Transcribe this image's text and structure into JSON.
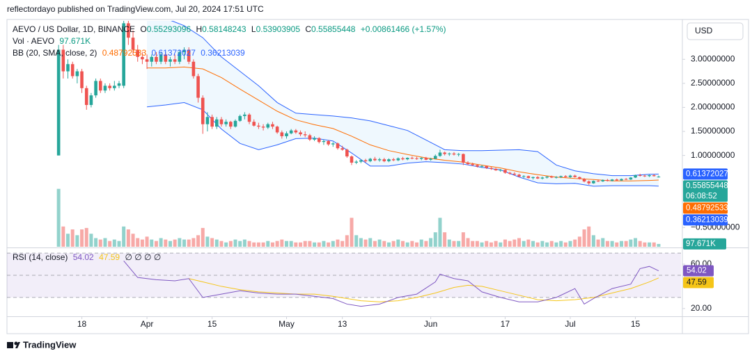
{
  "header": "reflectordayo published on TradingView.com, Jul 20, 2024 17:51 UTC",
  "footer": "TradingView",
  "chart_data": {
    "type": "candlestick",
    "title": "AEVO / US Dollar, 1D, BINANCE",
    "legend": {
      "o": "O",
      "h": "H",
      "l": "L",
      "c": "C",
      "change": "+0.00861466 (+1.57%)"
    },
    "currency": "USD",
    "countdown": "06:08:52",
    "up_color": "#26a69a",
    "down_color": "#ef5350",
    "xlim": [
      -11.1,
      133.8
    ],
    "xticks": [
      {
        "value": 5,
        "label": "18"
      },
      {
        "value": 19,
        "label": "Apr"
      },
      {
        "value": 33,
        "label": "15"
      },
      {
        "value": 49,
        "label": "May"
      },
      {
        "value": 61,
        "label": "13"
      },
      {
        "value": 80,
        "label": "Jun"
      },
      {
        "value": 96,
        "label": "17"
      },
      {
        "value": 110,
        "label": "Jul"
      },
      {
        "value": 124,
        "label": "15"
      }
    ],
    "ylim": [
      -0.9,
      3.8
    ],
    "yticks": [
      {
        "value": 3,
        "label": "3.00000000"
      },
      {
        "value": 2.5,
        "label": "2.50000000"
      },
      {
        "value": 2,
        "label": "2.00000000"
      },
      {
        "value": 1.5,
        "label": "1.50000000"
      },
      {
        "value": 1,
        "label": "1.00000000"
      },
      {
        "value": -0.5,
        "label": "−0.50000000"
      }
    ],
    "ohlc": [
      [
        1.0,
        3.3,
        1.0,
        3.2
      ],
      [
        3.2,
        3.3,
        2.6,
        2.75
      ],
      [
        2.75,
        3.0,
        2.6,
        2.9
      ],
      [
        2.9,
        2.95,
        2.6,
        2.65
      ],
      [
        2.65,
        2.8,
        2.5,
        2.75
      ],
      [
        2.75,
        2.8,
        2.3,
        2.4
      ],
      [
        2.4,
        2.45,
        1.95,
        2.05
      ],
      [
        2.05,
        2.3,
        2.0,
        2.25
      ],
      [
        2.25,
        2.6,
        2.2,
        2.55
      ],
      [
        2.55,
        2.6,
        2.3,
        2.35
      ],
      [
        2.35,
        2.5,
        2.3,
        2.45
      ],
      [
        2.45,
        2.5,
        2.35,
        2.4
      ],
      [
        2.4,
        2.55,
        2.35,
        2.45
      ],
      [
        2.45,
        2.55,
        2.4,
        2.5
      ],
      [
        2.45,
        3.9,
        2.4,
        3.75
      ],
      [
        3.75,
        3.9,
        3.3,
        3.45
      ],
      [
        3.45,
        3.6,
        3.1,
        3.2
      ],
      [
        3.2,
        3.3,
        2.95,
        3.05
      ],
      [
        3.05,
        3.15,
        2.9,
        3.0
      ],
      [
        3.0,
        3.1,
        2.8,
        2.95
      ],
      [
        2.95,
        3.1,
        2.85,
        3.05
      ],
      [
        3.05,
        3.15,
        2.9,
        2.95
      ],
      [
        2.95,
        3.15,
        2.9,
        3.1
      ],
      [
        3.1,
        3.15,
        2.9,
        2.95
      ],
      [
        2.95,
        3.05,
        2.85,
        3.0
      ],
      [
        3.0,
        3.1,
        2.9,
        2.95
      ],
      [
        2.95,
        3.2,
        2.9,
        3.15
      ],
      [
        3.15,
        3.25,
        3.0,
        3.2
      ],
      [
        3.2,
        3.25,
        2.9,
        2.95
      ],
      [
        2.95,
        3.0,
        2.6,
        2.65
      ],
      [
        2.65,
        2.7,
        2.1,
        2.2
      ],
      [
        2.2,
        2.25,
        1.45,
        1.65
      ],
      [
        1.65,
        1.9,
        1.5,
        1.8
      ],
      [
        1.8,
        1.85,
        1.55,
        1.6
      ],
      [
        1.6,
        1.8,
        1.55,
        1.75
      ],
      [
        1.75,
        1.8,
        1.6,
        1.65
      ],
      [
        1.65,
        1.75,
        1.6,
        1.7
      ],
      [
        1.7,
        1.72,
        1.55,
        1.6
      ],
      [
        1.6,
        1.75,
        1.58,
        1.72
      ],
      [
        1.72,
        1.85,
        1.7,
        1.82
      ],
      [
        1.82,
        1.9,
        1.75,
        1.85
      ],
      [
        1.85,
        1.88,
        1.65,
        1.7
      ],
      [
        1.7,
        1.75,
        1.6,
        1.62
      ],
      [
        1.62,
        1.68,
        1.55,
        1.6
      ],
      [
        1.6,
        1.65,
        1.52,
        1.58
      ],
      [
        1.58,
        1.68,
        1.55,
        1.65
      ],
      [
        1.65,
        1.7,
        1.55,
        1.6
      ],
      [
        1.6,
        1.62,
        1.45,
        1.48
      ],
      [
        1.48,
        1.52,
        1.35,
        1.4
      ],
      [
        1.4,
        1.5,
        1.35,
        1.46
      ],
      [
        1.46,
        1.55,
        1.44,
        1.52
      ],
      [
        1.52,
        1.55,
        1.45,
        1.48
      ],
      [
        1.48,
        1.52,
        1.4,
        1.44
      ],
      [
        1.44,
        1.5,
        1.38,
        1.42
      ],
      [
        1.42,
        1.45,
        1.3,
        1.33
      ],
      [
        1.33,
        1.4,
        1.3,
        1.36
      ],
      [
        1.36,
        1.38,
        1.25,
        1.28
      ],
      [
        1.28,
        1.33,
        1.22,
        1.3
      ],
      [
        1.3,
        1.32,
        1.2,
        1.23
      ],
      [
        1.23,
        1.28,
        1.18,
        1.25
      ],
      [
        1.25,
        1.27,
        1.12,
        1.15
      ],
      [
        1.15,
        1.2,
        1.1,
        1.12
      ],
      [
        1.12,
        1.14,
        0.95,
        0.98
      ],
      [
        0.98,
        1.0,
        0.8,
        0.85
      ],
      [
        0.85,
        0.9,
        0.82,
        0.87
      ],
      [
        0.87,
        0.92,
        0.84,
        0.9
      ],
      [
        0.9,
        0.93,
        0.85,
        0.88
      ],
      [
        0.88,
        0.95,
        0.86,
        0.93
      ],
      [
        0.93,
        0.97,
        0.88,
        0.9
      ],
      [
        0.9,
        0.95,
        0.87,
        0.92
      ],
      [
        0.92,
        0.95,
        0.86,
        0.88
      ],
      [
        0.88,
        0.94,
        0.86,
        0.92
      ],
      [
        0.92,
        0.95,
        0.88,
        0.9
      ],
      [
        0.9,
        0.96,
        0.88,
        0.94
      ],
      [
        0.94,
        0.97,
        0.9,
        0.92
      ],
      [
        0.92,
        0.96,
        0.9,
        0.95
      ],
      [
        0.95,
        0.98,
        0.92,
        0.94
      ],
      [
        0.94,
        0.97,
        0.91,
        0.93
      ],
      [
        0.93,
        0.96,
        0.9,
        0.95
      ],
      [
        0.95,
        0.97,
        0.9,
        0.91
      ],
      [
        0.91,
        0.95,
        0.89,
        0.93
      ],
      [
        0.93,
        1.02,
        0.92,
        0.99
      ],
      [
        0.99,
        1.12,
        0.97,
        1.06
      ],
      [
        1.06,
        1.08,
        1.0,
        1.03
      ],
      [
        1.03,
        1.06,
        0.99,
        1.04
      ],
      [
        1.04,
        1.07,
        1.0,
        1.02
      ],
      [
        1.02,
        1.05,
        0.98,
        1.03
      ],
      [
        1.03,
        1.04,
        0.8,
        0.85
      ],
      [
        0.85,
        0.88,
        0.8,
        0.82
      ],
      [
        0.82,
        0.85,
        0.78,
        0.8
      ],
      [
        0.8,
        0.82,
        0.75,
        0.77
      ],
      [
        0.77,
        0.8,
        0.74,
        0.78
      ],
      [
        0.78,
        0.79,
        0.72,
        0.74
      ],
      [
        0.74,
        0.76,
        0.7,
        0.72
      ],
      [
        0.72,
        0.74,
        0.68,
        0.69
      ],
      [
        0.69,
        0.72,
        0.66,
        0.7
      ],
      [
        0.7,
        0.71,
        0.62,
        0.64
      ],
      [
        0.64,
        0.66,
        0.6,
        0.62
      ],
      [
        0.62,
        0.65,
        0.58,
        0.6
      ],
      [
        0.6,
        0.62,
        0.55,
        0.56
      ],
      [
        0.56,
        0.59,
        0.53,
        0.57
      ],
      [
        0.57,
        0.58,
        0.52,
        0.53
      ],
      [
        0.53,
        0.56,
        0.5,
        0.55
      ],
      [
        0.55,
        0.57,
        0.51,
        0.52
      ],
      [
        0.52,
        0.56,
        0.5,
        0.54
      ],
      [
        0.54,
        0.57,
        0.52,
        0.56
      ],
      [
        0.56,
        0.58,
        0.53,
        0.54
      ],
      [
        0.54,
        0.57,
        0.52,
        0.55
      ],
      [
        0.55,
        0.58,
        0.53,
        0.57
      ],
      [
        0.57,
        0.59,
        0.54,
        0.55
      ],
      [
        0.55,
        0.6,
        0.53,
        0.58
      ],
      [
        0.58,
        0.6,
        0.54,
        0.55
      ],
      [
        0.55,
        0.56,
        0.5,
        0.51
      ],
      [
        0.51,
        0.53,
        0.44,
        0.46
      ],
      [
        0.46,
        0.48,
        0.39,
        0.42
      ],
      [
        0.42,
        0.48,
        0.41,
        0.47
      ],
      [
        0.47,
        0.5,
        0.45,
        0.46
      ],
      [
        0.46,
        0.5,
        0.45,
        0.49
      ],
      [
        0.49,
        0.51,
        0.46,
        0.47
      ],
      [
        0.47,
        0.51,
        0.46,
        0.5
      ],
      [
        0.5,
        0.52,
        0.47,
        0.48
      ],
      [
        0.48,
        0.52,
        0.47,
        0.51
      ],
      [
        0.51,
        0.53,
        0.49,
        0.5
      ],
      [
        0.5,
        0.55,
        0.49,
        0.54
      ],
      [
        0.54,
        0.6,
        0.53,
        0.59
      ],
      [
        0.59,
        0.62,
        0.56,
        0.58
      ],
      [
        0.58,
        0.6,
        0.55,
        0.57
      ],
      [
        0.57,
        0.6,
        0.55,
        0.59
      ],
      [
        0.59,
        0.61,
        0.56,
        0.57
      ],
      [
        0.55293096,
        0.58148243,
        0.53903905,
        0.55855448
      ]
    ],
    "volume": {
      "name": "Vol · AEVO",
      "ylim": [
        0,
        2400000
      ],
      "last_label": "97.671K",
      "values": [
        2000000,
        700000,
        450000,
        600000,
        400000,
        600000,
        650000,
        450000,
        300000,
        250000,
        300000,
        200000,
        250000,
        200000,
        700000,
        600000,
        450000,
        300000,
        250000,
        350000,
        250000,
        200000,
        300000,
        250000,
        200000,
        250000,
        300000,
        250000,
        250000,
        300000,
        400000,
        650000,
        350000,
        300000,
        250000,
        200000,
        150000,
        200000,
        250000,
        200000,
        250000,
        200000,
        150000,
        150000,
        150000,
        200000,
        150000,
        200000,
        250000,
        200000,
        200000,
        150000,
        150000,
        200000,
        200000,
        150000,
        150000,
        200000,
        150000,
        200000,
        250000,
        200000,
        400000,
        1000000,
        400000,
        300000,
        250000,
        300000,
        200000,
        250000,
        200000,
        150000,
        200000,
        250000,
        200000,
        150000,
        200000,
        150000,
        250000,
        200000,
        300000,
        500000,
        1000000,
        500000,
        250000,
        200000,
        200000,
        500000,
        300000,
        200000,
        200000,
        150000,
        200000,
        150000,
        200000,
        150000,
        250000,
        200000,
        250000,
        300000,
        200000,
        250000,
        200000,
        150000,
        200000,
        150000,
        200000,
        150000,
        200000,
        150000,
        200000,
        250000,
        350000,
        600000,
        700000,
        400000,
        250000,
        300000,
        200000,
        200000,
        150000,
        200000,
        200000,
        250000,
        300000,
        200000,
        150000,
        150000,
        150000,
        97671
      ]
    },
    "bb": {
      "name": "BB (20, SMA, close, 2)",
      "x": [
        19,
        23,
        27,
        31,
        35,
        39,
        43,
        47,
        51,
        55,
        59,
        63,
        67,
        71,
        75,
        79,
        83,
        87,
        91,
        95,
        99,
        103,
        107,
        111,
        115,
        119,
        123,
        127,
        129
      ],
      "basis": {
        "color": "#ff6d00",
        "values": [
          2.82,
          2.82,
          2.84,
          2.8,
          2.62,
          2.38,
          2.15,
          1.92,
          1.74,
          1.64,
          1.56,
          1.4,
          1.22,
          1.1,
          1.02,
          0.95,
          0.9,
          0.86,
          0.8,
          0.74,
          0.66,
          0.6,
          0.55,
          0.52,
          0.5,
          0.47,
          0.47,
          0.48,
          0.48792533
        ]
      },
      "upper": {
        "color": "#2962ff",
        "values": [
          3.95,
          3.85,
          3.7,
          3.45,
          3.05,
          2.75,
          2.45,
          2.1,
          1.88,
          1.85,
          1.82,
          1.78,
          1.72,
          1.62,
          1.52,
          1.32,
          1.12,
          1.1,
          1.1,
          1.11,
          1.12,
          1.08,
          0.8,
          0.68,
          0.62,
          0.58,
          0.58,
          0.61,
          0.61372027
        ]
      },
      "lower": {
        "color": "#2962ff",
        "values": [
          2.01,
          2.05,
          2.1,
          1.95,
          1.55,
          1.25,
          1.12,
          1.22,
          1.35,
          1.36,
          1.3,
          1.05,
          0.78,
          0.78,
          0.84,
          0.87,
          0.85,
          0.82,
          0.75,
          0.7,
          0.55,
          0.43,
          0.41,
          0.42,
          0.36,
          0.37,
          0.37,
          0.37,
          0.36213039
        ]
      }
    },
    "rsi": {
      "name": "RSI (14, close)",
      "placeholders": "∅ ∅ ∅ ∅",
      "ylim": [
        13,
        73.8
      ],
      "yticks": [
        {
          "value": 60,
          "label": "60.00"
        },
        {
          "value": 20,
          "label": "20.00"
        }
      ],
      "levels": [
        70,
        50,
        30
      ],
      "line": {
        "color": "#7e57c2",
        "x": [
          14,
          17,
          21,
          25,
          28,
          31,
          35,
          39,
          43,
          47,
          51,
          55,
          59,
          62,
          65,
          69,
          73,
          77,
          81,
          82,
          85,
          88,
          91,
          95,
          99,
          103,
          107,
          111,
          113,
          115,
          119,
          123,
          125,
          127,
          129
        ],
        "values": [
          63,
          48,
          46,
          45,
          47,
          30,
          33,
          36,
          34,
          33,
          33,
          31,
          29,
          24,
          22,
          24,
          30,
          33,
          44,
          51,
          47,
          45,
          35,
          30,
          26,
          26,
          30,
          38,
          24,
          29,
          38,
          42,
          56,
          58,
          54.02
        ]
      },
      "ma": {
        "color": "#f5c518",
        "x": [
          28,
          31,
          35,
          39,
          43,
          47,
          51,
          55,
          59,
          62,
          65,
          69,
          73,
          77,
          81,
          85,
          88,
          91,
          95,
          99,
          103,
          107,
          111,
          115,
          119,
          123,
          127,
          129
        ],
        "values": [
          47,
          44,
          40,
          37,
          35,
          34,
          33,
          33,
          31,
          29,
          27,
          26,
          27,
          30,
          34,
          39,
          41,
          40,
          36,
          32,
          28,
          27,
          28,
          30,
          34,
          38,
          44,
          47.59
        ]
      }
    }
  }
}
